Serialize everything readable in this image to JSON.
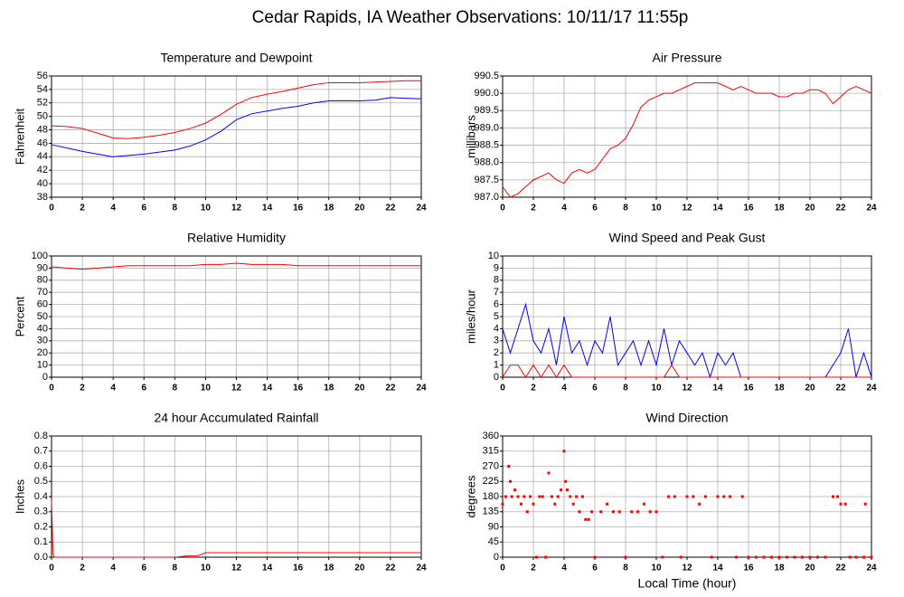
{
  "title": "Cedar Rapids, IA Weather Observations: 10/11/17 11:55p",
  "chart_data": [
    {
      "type": "line",
      "title": "Temperature and Dewpoint",
      "ylabel": "Fahrenheit",
      "x": [
        0,
        1,
        2,
        3,
        4,
        5,
        6,
        7,
        8,
        9,
        10,
        11,
        12,
        13,
        14,
        15,
        16,
        17,
        18,
        19,
        20,
        21,
        22,
        23,
        24
      ],
      "series": [
        {
          "name": "Temperature",
          "color": "#ff0000",
          "values": [
            48.6,
            48.5,
            48.2,
            47.5,
            46.8,
            46.7,
            46.9,
            47.2,
            47.6,
            48.2,
            49.0,
            50.3,
            51.8,
            52.8,
            53.3,
            53.7,
            54.2,
            54.7,
            55.0,
            55.0,
            55.0,
            55.1,
            55.2,
            55.3,
            55.3
          ]
        },
        {
          "name": "Dewpoint",
          "color": "#0000ff",
          "values": [
            45.8,
            45.3,
            44.8,
            44.4,
            44.0,
            44.2,
            44.4,
            44.7,
            45.0,
            45.6,
            46.5,
            47.8,
            49.5,
            50.4,
            50.8,
            51.2,
            51.5,
            52.0,
            52.3,
            52.3,
            52.3,
            52.4,
            52.8,
            52.7,
            52.6
          ]
        }
      ],
      "xlim": [
        0,
        24
      ],
      "xticks": [
        0,
        2,
        4,
        6,
        8,
        10,
        12,
        14,
        16,
        18,
        20,
        22,
        24
      ],
      "ylim": [
        38,
        56
      ],
      "yticks": [
        38,
        40,
        42,
        44,
        46,
        48,
        50,
        52,
        54,
        56
      ],
      "grid": true
    },
    {
      "type": "line",
      "title": "Air Pressure",
      "ylabel": "millibars",
      "x": [
        0,
        0.5,
        1,
        1.5,
        2,
        2.5,
        3,
        3.5,
        4,
        4.5,
        5,
        5.5,
        6,
        6.5,
        7,
        7.5,
        8,
        8.5,
        9,
        9.5,
        10,
        10.5,
        11,
        11.5,
        12,
        12.5,
        13,
        13.5,
        14,
        14.5,
        15,
        15.5,
        16,
        16.5,
        17,
        17.5,
        18,
        18.5,
        19,
        19.5,
        20,
        20.5,
        21,
        21.5,
        22,
        22.5,
        23,
        23.5,
        24
      ],
      "series": [
        {
          "name": "Pressure",
          "color": "#ff0000",
          "values": [
            987.3,
            987.0,
            987.1,
            987.3,
            987.5,
            987.6,
            987.7,
            987.5,
            987.4,
            987.7,
            987.8,
            987.7,
            987.8,
            988.1,
            988.4,
            988.5,
            988.7,
            989.1,
            989.6,
            989.8,
            989.9,
            990.0,
            990.0,
            990.1,
            990.2,
            990.3,
            990.3,
            990.3,
            990.3,
            990.2,
            990.1,
            990.2,
            990.1,
            990.0,
            990.0,
            990.0,
            989.9,
            989.9,
            990.0,
            990.0,
            990.1,
            990.1,
            990.0,
            989.7,
            989.9,
            990.1,
            990.2,
            990.1,
            990.0
          ]
        }
      ],
      "xlim": [
        0,
        24
      ],
      "xticks": [
        0,
        2,
        4,
        6,
        8,
        10,
        12,
        14,
        16,
        18,
        20,
        22,
        24
      ],
      "ylim": [
        987,
        990.5
      ],
      "yticks": [
        {
          "value": 987,
          "label": "987.0"
        },
        987.5,
        {
          "value": 988,
          "label": "988.0"
        },
        988.5,
        {
          "value": 989,
          "label": "989.0"
        },
        989.5,
        {
          "value": 990,
          "label": "990.0"
        },
        990.5
      ],
      "grid": true
    },
    {
      "type": "line",
      "title": "Relative Humidity",
      "ylabel": "Percent",
      "x": [
        0,
        1,
        2,
        3,
        4,
        5,
        6,
        7,
        8,
        9,
        10,
        11,
        12,
        13,
        14,
        15,
        16,
        17,
        18,
        19,
        20,
        21,
        22,
        23,
        24
      ],
      "series": [
        {
          "name": "Relative Humidity",
          "color": "#ff0000",
          "values": [
            91,
            90,
            89,
            90,
            91,
            92,
            92,
            92,
            92,
            92,
            93,
            93,
            94,
            93,
            93,
            93,
            92,
            92,
            92,
            92,
            92,
            92,
            92,
            92,
            92
          ]
        }
      ],
      "xlim": [
        0,
        24
      ],
      "xticks": [
        0,
        2,
        4,
        6,
        8,
        10,
        12,
        14,
        16,
        18,
        20,
        22,
        24
      ],
      "ylim": [
        0,
        100
      ],
      "yticks": [
        0,
        10,
        20,
        30,
        40,
        50,
        60,
        70,
        80,
        90,
        100
      ],
      "grid": true
    },
    {
      "type": "line",
      "title": "Wind Speed and Peak Gust",
      "ylabel": "miles/hour",
      "x": [
        0,
        0.5,
        1,
        1.5,
        2,
        2.5,
        3,
        3.5,
        4,
        4.5,
        5,
        5.5,
        6,
        6.5,
        7,
        7.5,
        8,
        8.5,
        9,
        9.5,
        10,
        10.5,
        11,
        11.5,
        12,
        12.5,
        13,
        13.5,
        14,
        14.5,
        15,
        15.5,
        16,
        16.5,
        17,
        17.5,
        18,
        18.5,
        19,
        19.5,
        20,
        20.5,
        21,
        21.5,
        22,
        22.5,
        23,
        23.5,
        24
      ],
      "series": [
        {
          "name": "Wind Speed",
          "color": "#0000ff",
          "values": [
            4,
            2,
            4,
            6,
            3,
            2,
            4,
            1,
            5,
            2,
            3,
            1,
            3,
            2,
            5,
            1,
            2,
            3,
            1,
            3,
            1,
            4,
            1,
            3,
            2,
            1,
            2,
            0,
            2,
            1,
            2,
            0,
            0,
            0,
            0,
            0,
            0,
            0,
            0,
            0,
            0,
            0,
            0,
            1,
            2,
            4,
            0,
            2,
            0
          ]
        },
        {
          "name": "Peak Gust",
          "color": "#ff0000",
          "values": [
            0,
            1,
            1,
            0,
            1,
            0,
            1,
            0,
            1,
            0,
            0,
            0,
            0,
            0,
            0,
            0,
            0,
            0,
            0,
            0,
            0,
            0,
            1,
            0,
            0,
            0,
            0,
            0,
            0,
            0,
            0,
            0,
            0,
            0,
            0,
            0,
            0,
            0,
            0,
            0,
            0,
            0,
            0,
            0,
            0,
            0,
            0,
            0,
            0
          ]
        }
      ],
      "xlim": [
        0,
        24
      ],
      "xticks": [
        0,
        2,
        4,
        6,
        8,
        10,
        12,
        14,
        16,
        18,
        20,
        22,
        24
      ],
      "ylim": [
        0,
        10
      ],
      "yticks": [
        0,
        1,
        2,
        3,
        4,
        5,
        6,
        7,
        8,
        9,
        10
      ],
      "grid": true
    },
    {
      "type": "line",
      "title": "24 hour Accumulated Rainfall",
      "ylabel": "Inches",
      "x": [
        0,
        0.1,
        0.2,
        8,
        8.5,
        9,
        9.5,
        10,
        24
      ],
      "series": [
        {
          "name": "Rainfall",
          "color": "#ff0000",
          "values": [
            0.38,
            0.02,
            0,
            0,
            0.005,
            0.01,
            0.01,
            0.03,
            0.03
          ]
        }
      ],
      "xlim": [
        0,
        24
      ],
      "xticks": [
        0,
        2,
        4,
        6,
        8,
        10,
        12,
        14,
        16,
        18,
        20,
        22,
        24
      ],
      "ylim": [
        0,
        0.8
      ],
      "yticks": [
        {
          "value": 0,
          "label": "0.0"
        },
        0.1,
        0.2,
        0.3,
        0.4,
        0.5,
        0.6,
        0.7,
        0.8
      ],
      "grid": true
    },
    {
      "type": "scatter",
      "title": "Wind Direction",
      "ylabel": "degrees",
      "xlabel": "Local Time (hour)",
      "x": [
        0,
        0.2,
        0.4,
        0.5,
        0.6,
        0.8,
        1,
        1.2,
        1.4,
        1.6,
        1.8,
        2,
        2.2,
        2.4,
        2.6,
        2.8,
        3,
        3.2,
        3.4,
        3.6,
        3.8,
        4,
        4.1,
        4.2,
        4.4,
        4.6,
        4.8,
        5,
        5.2,
        5.4,
        5.6,
        5.8,
        6,
        6.4,
        6.8,
        7.2,
        7.6,
        8,
        8.4,
        8.8,
        9.2,
        9.6,
        10,
        10.4,
        10.8,
        11.2,
        11.6,
        12,
        12.4,
        12.8,
        13.2,
        13.6,
        14,
        14.4,
        14.8,
        15.2,
        15.6,
        16,
        16.5,
        17,
        17.5,
        18,
        18.5,
        19,
        19.5,
        20,
        20.5,
        21,
        21.5,
        21.8,
        22,
        22.3,
        22.6,
        23,
        23.5,
        23.6,
        24
      ],
      "values": [
        158,
        180,
        270,
        225,
        180,
        200,
        180,
        158,
        180,
        135,
        180,
        158,
        0,
        180,
        180,
        0,
        250,
        180,
        158,
        180,
        200,
        315,
        225,
        200,
        180,
        158,
        180,
        135,
        180,
        112,
        112,
        135,
        0,
        135,
        158,
        135,
        135,
        0,
        135,
        135,
        158,
        135,
        135,
        0,
        180,
        180,
        0,
        180,
        180,
        158,
        180,
        0,
        180,
        180,
        180,
        0,
        180,
        0,
        0,
        0,
        0,
        0,
        0,
        0,
        0,
        0,
        0,
        0,
        180,
        180,
        158,
        158,
        0,
        0,
        0,
        158,
        0
      ],
      "color": "#ff0000",
      "xlim": [
        0,
        24
      ],
      "xticks": [
        0,
        2,
        4,
        6,
        8,
        10,
        12,
        14,
        16,
        18,
        20,
        22,
        24
      ],
      "ylim": [
        0,
        360
      ],
      "yticks": [
        0,
        45,
        90,
        135,
        180,
        225,
        270,
        315,
        360
      ],
      "grid": true
    }
  ]
}
